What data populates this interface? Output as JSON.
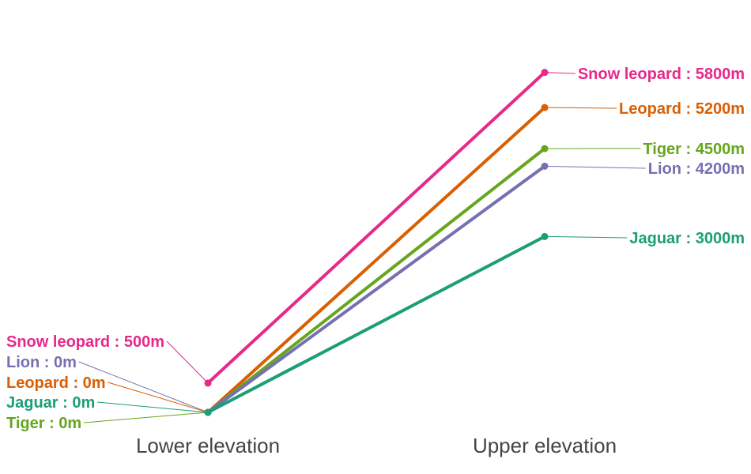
{
  "chart_data": {
    "type": "line",
    "subtype": "slope",
    "x": [
      "Lower elevation",
      "Upper elevation"
    ],
    "unit": "m",
    "series": [
      {
        "name": "Snow leopard",
        "values": [
          500,
          5800
        ],
        "color": "#e7298a"
      },
      {
        "name": "Leopard",
        "values": [
          0,
          5200
        ],
        "color": "#d95f02"
      },
      {
        "name": "Tiger",
        "values": [
          0,
          4500
        ],
        "color": "#66a61e"
      },
      {
        "name": "Lion",
        "values": [
          0,
          4200
        ],
        "color": "#7570b3"
      },
      {
        "name": "Jaguar",
        "values": [
          0,
          3000
        ],
        "color": "#1b9e77"
      }
    ],
    "left_labels": [
      {
        "series": "Snow leopard",
        "text": "Snow leopard : 500m"
      },
      {
        "series": "Lion",
        "text": "Lion : 0m"
      },
      {
        "series": "Leopard",
        "text": "Leopard : 0m"
      },
      {
        "series": "Jaguar",
        "text": "Jaguar : 0m"
      },
      {
        "series": "Tiger",
        "text": "Tiger : 0m"
      }
    ],
    "right_labels": [
      {
        "series": "Snow leopard",
        "text": "Snow leopard : 5800m"
      },
      {
        "series": "Leopard",
        "text": "Leopard : 5200m"
      },
      {
        "series": "Tiger",
        "text": "Tiger : 4500m"
      },
      {
        "series": "Lion",
        "text": "Lion : 4200m"
      },
      {
        "series": "Jaguar",
        "text": "Jaguar : 3000m"
      }
    ],
    "grid": false,
    "legend": "none"
  }
}
